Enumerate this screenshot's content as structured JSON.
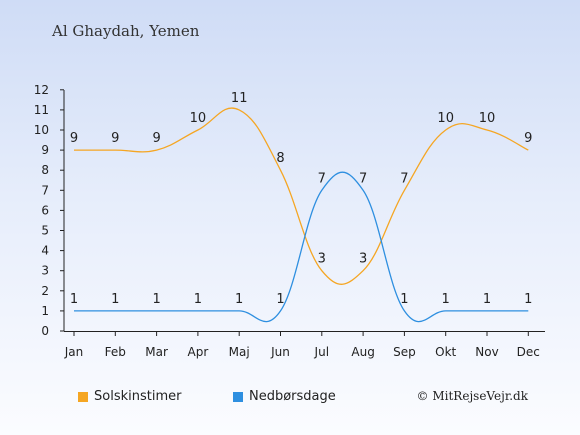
{
  "chart_data": {
    "type": "line",
    "title": "Al Ghaydah, Yemen",
    "categories": [
      "Jan",
      "Feb",
      "Mar",
      "Apr",
      "Maj",
      "Jun",
      "Jul",
      "Aug",
      "Sep",
      "Okt",
      "Nov",
      "Dec"
    ],
    "yticks": [
      0,
      1,
      2,
      3,
      4,
      5,
      6,
      7,
      8,
      9,
      10,
      11,
      12
    ],
    "ylim": [
      0,
      12
    ],
    "grid": false,
    "legend_placement": "bottom-left",
    "series": [
      {
        "name": "Solskinstimer",
        "color": "#f5a623",
        "values": [
          9,
          9,
          9,
          10,
          11,
          8,
          3,
          3,
          7,
          10,
          10,
          9
        ]
      },
      {
        "name": "Nedbørsdage",
        "color": "#2e8fe0",
        "values": [
          1,
          1,
          1,
          1,
          1,
          1,
          7,
          7,
          1,
          1,
          1,
          1
        ]
      }
    ]
  },
  "credit": "© MitRejseVejr.dk"
}
